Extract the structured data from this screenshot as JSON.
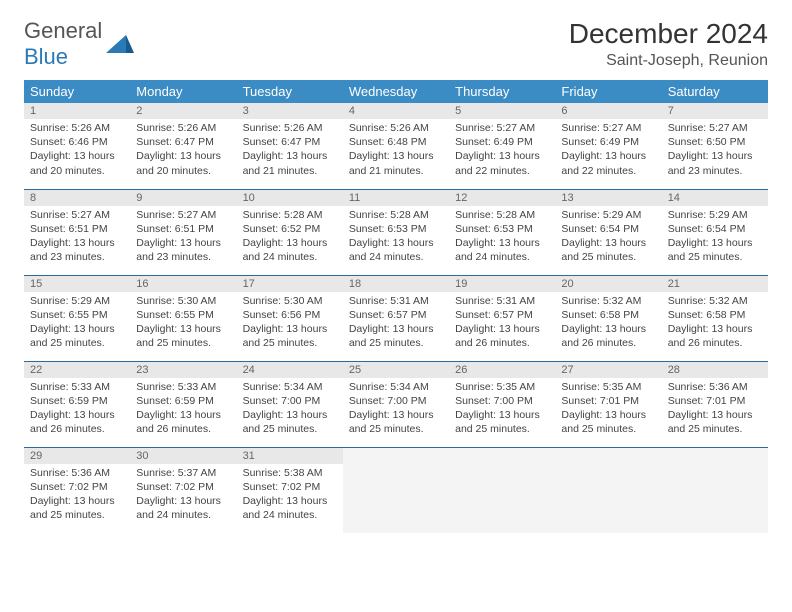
{
  "logo": {
    "text1": "General",
    "text2": "Blue"
  },
  "title": "December 2024",
  "location": "Saint-Joseph, Reunion",
  "colors": {
    "header_bg": "#3b8bc4",
    "header_text": "#ffffff",
    "row_border": "#2a6aa0",
    "daynum_bg": "#e8e8e8",
    "body_text": "#444444",
    "logo_gray": "#555555",
    "logo_blue": "#2a7ab8"
  },
  "weekdays": [
    "Sunday",
    "Monday",
    "Tuesday",
    "Wednesday",
    "Thursday",
    "Friday",
    "Saturday"
  ],
  "weeks": [
    [
      {
        "n": "1",
        "sr": "5:26 AM",
        "ss": "6:46 PM",
        "dl": "13 hours and 20 minutes."
      },
      {
        "n": "2",
        "sr": "5:26 AM",
        "ss": "6:47 PM",
        "dl": "13 hours and 20 minutes."
      },
      {
        "n": "3",
        "sr": "5:26 AM",
        "ss": "6:47 PM",
        "dl": "13 hours and 21 minutes."
      },
      {
        "n": "4",
        "sr": "5:26 AM",
        "ss": "6:48 PM",
        "dl": "13 hours and 21 minutes."
      },
      {
        "n": "5",
        "sr": "5:27 AM",
        "ss": "6:49 PM",
        "dl": "13 hours and 22 minutes."
      },
      {
        "n": "6",
        "sr": "5:27 AM",
        "ss": "6:49 PM",
        "dl": "13 hours and 22 minutes."
      },
      {
        "n": "7",
        "sr": "5:27 AM",
        "ss": "6:50 PM",
        "dl": "13 hours and 23 minutes."
      }
    ],
    [
      {
        "n": "8",
        "sr": "5:27 AM",
        "ss": "6:51 PM",
        "dl": "13 hours and 23 minutes."
      },
      {
        "n": "9",
        "sr": "5:27 AM",
        "ss": "6:51 PM",
        "dl": "13 hours and 23 minutes."
      },
      {
        "n": "10",
        "sr": "5:28 AM",
        "ss": "6:52 PM",
        "dl": "13 hours and 24 minutes."
      },
      {
        "n": "11",
        "sr": "5:28 AM",
        "ss": "6:53 PM",
        "dl": "13 hours and 24 minutes."
      },
      {
        "n": "12",
        "sr": "5:28 AM",
        "ss": "6:53 PM",
        "dl": "13 hours and 24 minutes."
      },
      {
        "n": "13",
        "sr": "5:29 AM",
        "ss": "6:54 PM",
        "dl": "13 hours and 25 minutes."
      },
      {
        "n": "14",
        "sr": "5:29 AM",
        "ss": "6:54 PM",
        "dl": "13 hours and 25 minutes."
      }
    ],
    [
      {
        "n": "15",
        "sr": "5:29 AM",
        "ss": "6:55 PM",
        "dl": "13 hours and 25 minutes."
      },
      {
        "n": "16",
        "sr": "5:30 AM",
        "ss": "6:55 PM",
        "dl": "13 hours and 25 minutes."
      },
      {
        "n": "17",
        "sr": "5:30 AM",
        "ss": "6:56 PM",
        "dl": "13 hours and 25 minutes."
      },
      {
        "n": "18",
        "sr": "5:31 AM",
        "ss": "6:57 PM",
        "dl": "13 hours and 25 minutes."
      },
      {
        "n": "19",
        "sr": "5:31 AM",
        "ss": "6:57 PM",
        "dl": "13 hours and 26 minutes."
      },
      {
        "n": "20",
        "sr": "5:32 AM",
        "ss": "6:58 PM",
        "dl": "13 hours and 26 minutes."
      },
      {
        "n": "21",
        "sr": "5:32 AM",
        "ss": "6:58 PM",
        "dl": "13 hours and 26 minutes."
      }
    ],
    [
      {
        "n": "22",
        "sr": "5:33 AM",
        "ss": "6:59 PM",
        "dl": "13 hours and 26 minutes."
      },
      {
        "n": "23",
        "sr": "5:33 AM",
        "ss": "6:59 PM",
        "dl": "13 hours and 26 minutes."
      },
      {
        "n": "24",
        "sr": "5:34 AM",
        "ss": "7:00 PM",
        "dl": "13 hours and 25 minutes."
      },
      {
        "n": "25",
        "sr": "5:34 AM",
        "ss": "7:00 PM",
        "dl": "13 hours and 25 minutes."
      },
      {
        "n": "26",
        "sr": "5:35 AM",
        "ss": "7:00 PM",
        "dl": "13 hours and 25 minutes."
      },
      {
        "n": "27",
        "sr": "5:35 AM",
        "ss": "7:01 PM",
        "dl": "13 hours and 25 minutes."
      },
      {
        "n": "28",
        "sr": "5:36 AM",
        "ss": "7:01 PM",
        "dl": "13 hours and 25 minutes."
      }
    ],
    [
      {
        "n": "29",
        "sr": "5:36 AM",
        "ss": "7:02 PM",
        "dl": "13 hours and 25 minutes."
      },
      {
        "n": "30",
        "sr": "5:37 AM",
        "ss": "7:02 PM",
        "dl": "13 hours and 24 minutes."
      },
      {
        "n": "31",
        "sr": "5:38 AM",
        "ss": "7:02 PM",
        "dl": "13 hours and 24 minutes."
      },
      null,
      null,
      null,
      null
    ]
  ],
  "labels": {
    "sunrise": "Sunrise: ",
    "sunset": "Sunset: ",
    "daylight": "Daylight: "
  }
}
